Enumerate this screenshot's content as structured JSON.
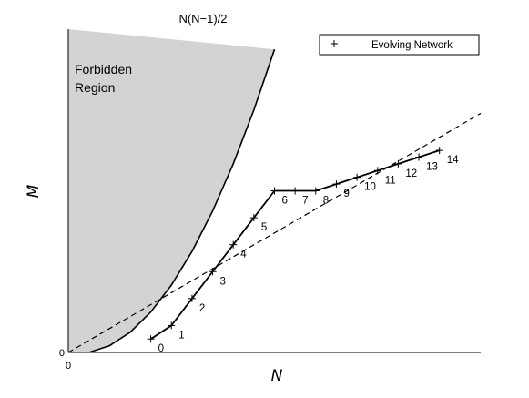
{
  "chart_data": {
    "type": "line",
    "xlabel": "N",
    "ylabel": "M",
    "xlim": [
      0,
      20
    ],
    "ylim": [
      0,
      48
    ],
    "x_tick_labels": [
      "0"
    ],
    "y_tick_labels": [
      "0"
    ],
    "grid": false,
    "legend_position": "top-right",
    "boundary_curve": {
      "label": "N(N−1)/2",
      "x": [
        1,
        2,
        3,
        4,
        5,
        6,
        7,
        8,
        9,
        10
      ],
      "y": [
        0,
        1,
        3,
        6,
        10,
        15,
        21,
        28,
        36,
        45
      ]
    },
    "region_annotation": [
      "Forbidden",
      "Region"
    ],
    "dashed_line": {
      "x": [
        0,
        20
      ],
      "y": [
        0,
        35.5
      ]
    },
    "series": [
      {
        "name": "Evolving Network",
        "point_labels": [
          "0",
          "1",
          "2",
          "3",
          "4",
          "5",
          "6",
          "7",
          "8",
          "9",
          "10",
          "11",
          "12",
          "13",
          "14"
        ],
        "x": [
          4,
          5,
          6,
          7,
          8,
          9,
          10,
          11,
          12,
          13,
          14,
          15,
          16,
          17,
          18
        ],
        "y": [
          2,
          4,
          8,
          12,
          16,
          20,
          24,
          24,
          24,
          25,
          26,
          27,
          28,
          29,
          30
        ]
      }
    ]
  },
  "colors": {
    "forbidden_fill": "#d3d3d3",
    "line": "#000000",
    "background": "#ffffff"
  }
}
